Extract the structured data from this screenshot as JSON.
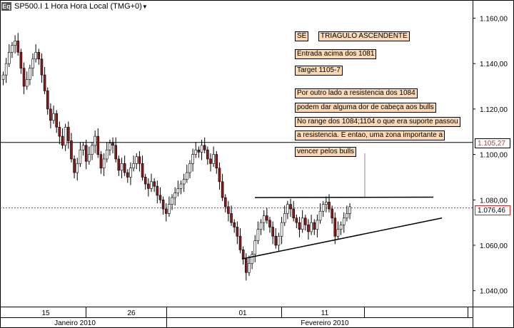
{
  "header": {
    "symbol_badge": "Eq",
    "title": "SP500.I 1 Hora Hora Local (TMG+0)",
    "dropdown_icon": "caret-down-icon"
  },
  "annotations": {
    "tag_se": "SE",
    "tag_pattern": "TRIAGULO ASCENDENTE",
    "entry": "Entrada acima dos 1081",
    "target": "Target 1105-7",
    "note1": "Por outro lado a resistencia dos 1084",
    "note2": "podem dar alguma dor de cabeça aos bulls",
    "note3": "No range dos 1084;1104 o que era suporte passou",
    "note4": "a resistencia. E entao, uma zona importante a",
    "note5": "vencer pelos bulls"
  },
  "price_labels": {
    "support_line": "1.105,27",
    "current": "1.076,46"
  },
  "colors": {
    "up_candle": "#ffffff",
    "down_candle": "#8b1a1a",
    "current_line": "#dd2222",
    "annotation_bg": "#fbd9b5"
  },
  "chart_data": {
    "type": "candlestick",
    "ylim": [
      1033,
      1168
    ],
    "yticks": [
      "1.160,00",
      "1.140,00",
      "1.120,00",
      "1.100,00",
      "1.080,00",
      "1.060,00",
      "1.040,00"
    ],
    "ytick_values": [
      1160,
      1140,
      1120,
      1100,
      1080,
      1060,
      1040
    ],
    "xticks_days": [
      "15",
      "26",
      "01",
      "11"
    ],
    "xticks_months": [
      "Janeiro 2010",
      "Fevereiro 2010"
    ],
    "horizontal_levels": [
      1105.27,
      1076.46
    ],
    "trendlines": [
      {
        "name": "resistance",
        "from": [
          1081.0
        ],
        "to": [
          1081.2
        ]
      },
      {
        "name": "support",
        "from": [
          1054.0
        ],
        "to": [
          1072.0
        ]
      }
    ],
    "closes": [
      1135,
      1140,
      1145,
      1148,
      1150,
      1145,
      1138,
      1130,
      1133,
      1138,
      1142,
      1145,
      1142,
      1135,
      1128,
      1120,
      1115,
      1118,
      1112,
      1108,
      1104,
      1112,
      1106,
      1098,
      1092,
      1096,
      1102,
      1104,
      1097,
      1100,
      1104,
      1108,
      1100,
      1094,
      1098,
      1102,
      1105,
      1104,
      1098,
      1093,
      1096,
      1092,
      1090,
      1094,
      1096,
      1099,
      1096,
      1090,
      1087,
      1085,
      1088,
      1086,
      1082,
      1080,
      1076,
      1074,
      1078,
      1081,
      1083,
      1085,
      1087,
      1089,
      1092,
      1096,
      1100,
      1102,
      1101,
      1104,
      1102,
      1098,
      1096,
      1100,
      1094,
      1088,
      1081,
      1077,
      1074,
      1070,
      1068,
      1064,
      1058,
      1054,
      1048,
      1052,
      1056,
      1062,
      1067,
      1070,
      1073,
      1071,
      1068,
      1064,
      1060,
      1064,
      1070,
      1074,
      1078,
      1076,
      1072,
      1070,
      1067,
      1072,
      1069,
      1066,
      1070,
      1067,
      1071,
      1075,
      1078,
      1079,
      1076,
      1072,
      1064,
      1067,
      1069,
      1072,
      1074,
      1077
    ]
  }
}
